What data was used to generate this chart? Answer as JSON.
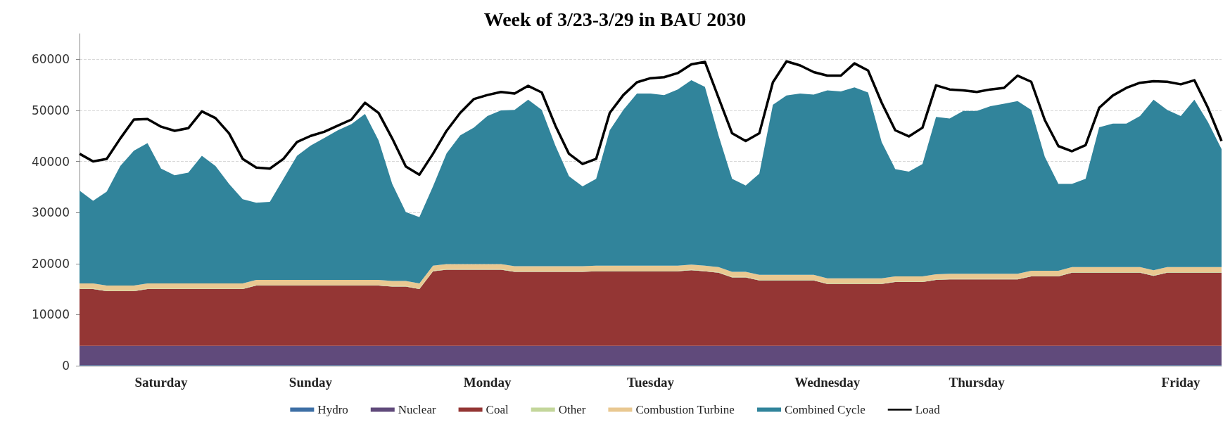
{
  "chart_data": {
    "type": "area",
    "title": "Week of 3/23-3/29 in BAU 2030",
    "stacked": true,
    "grid": "y",
    "legend": "bottom",
    "ylim": [
      0,
      65000
    ],
    "yticks": [
      0,
      10000,
      20000,
      30000,
      40000,
      50000,
      60000
    ],
    "categories": [
      null,
      null,
      null,
      null,
      null,
      null,
      "Saturday",
      null,
      null,
      null,
      null,
      null,
      null,
      null,
      null,
      null,
      null,
      "Sunday",
      null,
      null,
      null,
      null,
      null,
      null,
      null,
      null,
      null,
      null,
      null,
      null,
      "Monday",
      null,
      null,
      null,
      null,
      null,
      null,
      null,
      null,
      null,
      null,
      null,
      "Tuesday",
      null,
      null,
      null,
      null,
      null,
      null,
      null,
      null,
      null,
      null,
      null,
      null,
      "Wednesday",
      null,
      null,
      null,
      null,
      null,
      null,
      null,
      null,
      null,
      null,
      "Thursday",
      null,
      null,
      null,
      null,
      null,
      null,
      null,
      null,
      null,
      null,
      null,
      null,
      null,
      null,
      "Friday",
      null,
      null,
      null
    ],
    "series": [
      {
        "name": "Hydro",
        "color": "#3d6fa5",
        "values": [
          100,
          100,
          100,
          100,
          100,
          100,
          100,
          100,
          100,
          100,
          100,
          100,
          100,
          100,
          100,
          100,
          100,
          100,
          100,
          100,
          100,
          100,
          100,
          100,
          100,
          100,
          100,
          100,
          100,
          100,
          100,
          100,
          100,
          100,
          100,
          100,
          100,
          100,
          100,
          100,
          100,
          100,
          100,
          100,
          100,
          100,
          100,
          100,
          100,
          100,
          100,
          100,
          100,
          100,
          100,
          100,
          100,
          100,
          100,
          100,
          100,
          100,
          100,
          100,
          100,
          100,
          100,
          100,
          100,
          100,
          100,
          100,
          100,
          100,
          100,
          100,
          100,
          100,
          100,
          100,
          100,
          100,
          100,
          100,
          100
        ]
      },
      {
        "name": "Nuclear",
        "color": "#604a7b",
        "values": [
          3800,
          3800,
          3800,
          3800,
          3800,
          3800,
          3800,
          3800,
          3800,
          3800,
          3800,
          3800,
          3800,
          3800,
          3800,
          3800,
          3800,
          3800,
          3800,
          3800,
          3800,
          3800,
          3800,
          3800,
          3800,
          3800,
          3800,
          3800,
          3800,
          3800,
          3800,
          3800,
          3800,
          3800,
          3800,
          3800,
          3800,
          3800,
          3800,
          3800,
          3800,
          3800,
          3800,
          3800,
          3800,
          3800,
          3800,
          3800,
          3800,
          3800,
          3800,
          3800,
          3800,
          3800,
          3800,
          3800,
          3800,
          3800,
          3800,
          3800,
          3800,
          3800,
          3800,
          3800,
          3800,
          3800,
          3800,
          3800,
          3800,
          3800,
          3800,
          3800,
          3800,
          3800,
          3800,
          3800,
          3800,
          3800,
          3800,
          3800,
          3800,
          3800,
          3800,
          3800,
          3800
        ]
      },
      {
        "name": "Coal",
        "color": "#943634",
        "values": [
          11100,
          11100,
          10700,
          10700,
          10700,
          11100,
          11100,
          11100,
          11100,
          11100,
          11100,
          11100,
          11100,
          11800,
          11800,
          11800,
          11800,
          11800,
          11800,
          11800,
          11800,
          11800,
          11800,
          11600,
          11600,
          11100,
          14600,
          14900,
          14900,
          14900,
          14900,
          14900,
          14500,
          14500,
          14500,
          14500,
          14500,
          14500,
          14600,
          14600,
          14600,
          14600,
          14600,
          14600,
          14600,
          14800,
          14600,
          14300,
          13400,
          13400,
          12800,
          12800,
          12800,
          12800,
          12800,
          12100,
          12100,
          12100,
          12100,
          12100,
          12500,
          12500,
          12500,
          12900,
          13000,
          13000,
          13000,
          13000,
          13000,
          13000,
          13600,
          13600,
          13600,
          14300,
          14300,
          14300,
          14300,
          14300,
          14300,
          13700,
          14300,
          14300,
          14300,
          14300,
          14300
        ]
      },
      {
        "name": "Other",
        "color": "#c3d69b",
        "values": [
          100,
          100,
          100,
          100,
          100,
          100,
          100,
          100,
          100,
          100,
          100,
          100,
          100,
          100,
          100,
          100,
          100,
          100,
          100,
          100,
          100,
          100,
          100,
          100,
          100,
          100,
          100,
          100,
          100,
          100,
          100,
          100,
          100,
          100,
          100,
          100,
          100,
          100,
          100,
          100,
          100,
          100,
          100,
          100,
          100,
          100,
          100,
          100,
          100,
          100,
          100,
          100,
          100,
          100,
          100,
          100,
          100,
          100,
          100,
          100,
          100,
          100,
          100,
          100,
          100,
          100,
          100,
          100,
          100,
          100,
          100,
          100,
          100,
          100,
          100,
          100,
          100,
          100,
          100,
          100,
          100,
          100,
          100,
          100,
          100
        ]
      },
      {
        "name": "Combustion Turbine",
        "color": "#e9c891",
        "values": [
          1000,
          1000,
          1000,
          1000,
          1000,
          1000,
          1000,
          1000,
          1000,
          1000,
          1000,
          1000,
          1000,
          1000,
          1000,
          1000,
          1000,
          1000,
          1000,
          1000,
          1000,
          1000,
          1000,
          1000,
          1000,
          1000,
          1000,
          1000,
          1000,
          1000,
          1000,
          1000,
          1000,
          1000,
          1000,
          1000,
          1000,
          1000,
          1000,
          1000,
          1000,
          1000,
          1000,
          1000,
          1000,
          1000,
          1000,
          1000,
          1000,
          1000,
          1000,
          1000,
          1000,
          1000,
          1000,
          1000,
          1000,
          1000,
          1000,
          1000,
          1000,
          1000,
          1000,
          1000,
          1000,
          1000,
          1000,
          1000,
          1000,
          1000,
          1000,
          1000,
          1000,
          1000,
          1000,
          1000,
          1000,
          1000,
          1000,
          1000,
          1000,
          1000,
          1000,
          1000,
          1000
        ]
      },
      {
        "name": "Combined Cycle",
        "color": "#31849b",
        "values": [
          18200,
          16200,
          18400,
          23400,
          26400,
          27500,
          22500,
          21200,
          21700,
          25000,
          23000,
          19500,
          16500,
          15100,
          15300,
          19800,
          24300,
          26300,
          27800,
          29300,
          30500,
          32500,
          27300,
          19000,
          13500,
          13000,
          15500,
          21700,
          25200,
          26700,
          29000,
          30100,
          30600,
          32600,
          30600,
          23600,
          17600,
          15600,
          17000,
          26500,
          30500,
          33700,
          33700,
          33400,
          34500,
          36100,
          35000,
          25800,
          18200,
          16900,
          19800,
          33300,
          35100,
          35500,
          35300,
          36800,
          36600,
          37400,
          36400,
          26700,
          21000,
          20500,
          22000,
          30800,
          30400,
          31900,
          31900,
          32800,
          33300,
          33800,
          31500,
          22300,
          17000,
          16300,
          17300,
          27400,
          28100,
          28100,
          29600,
          33400,
          30800,
          29600,
          32800,
          28400,
          23100
        ]
      },
      {
        "name": "Load",
        "type": "line",
        "color": "#000000",
        "values": [
          41500,
          40000,
          40500,
          44500,
          48200,
          48300,
          46800,
          46000,
          46500,
          49800,
          48500,
          45500,
          40500,
          38800,
          38600,
          40500,
          43800,
          45000,
          45800,
          47000,
          48200,
          51500,
          49500,
          44500,
          39000,
          37400,
          41500,
          46000,
          49500,
          52200,
          53000,
          53600,
          53300,
          54800,
          53500,
          47000,
          41500,
          39500,
          40500,
          49500,
          53000,
          55500,
          56300,
          56500,
          57300,
          59000,
          59500,
          52500,
          45500,
          44000,
          45500,
          55500,
          59600,
          58800,
          57500,
          56800,
          56800,
          59200,
          57800,
          51500,
          46100,
          44900,
          46600,
          54900,
          54100,
          53900,
          53600,
          54100,
          54400,
          56800,
          55600,
          48100,
          43000,
          42000,
          43200,
          50500,
          52900,
          54400,
          55400,
          55700,
          55600,
          55100,
          55900,
          50500,
          44000
        ]
      }
    ]
  }
}
